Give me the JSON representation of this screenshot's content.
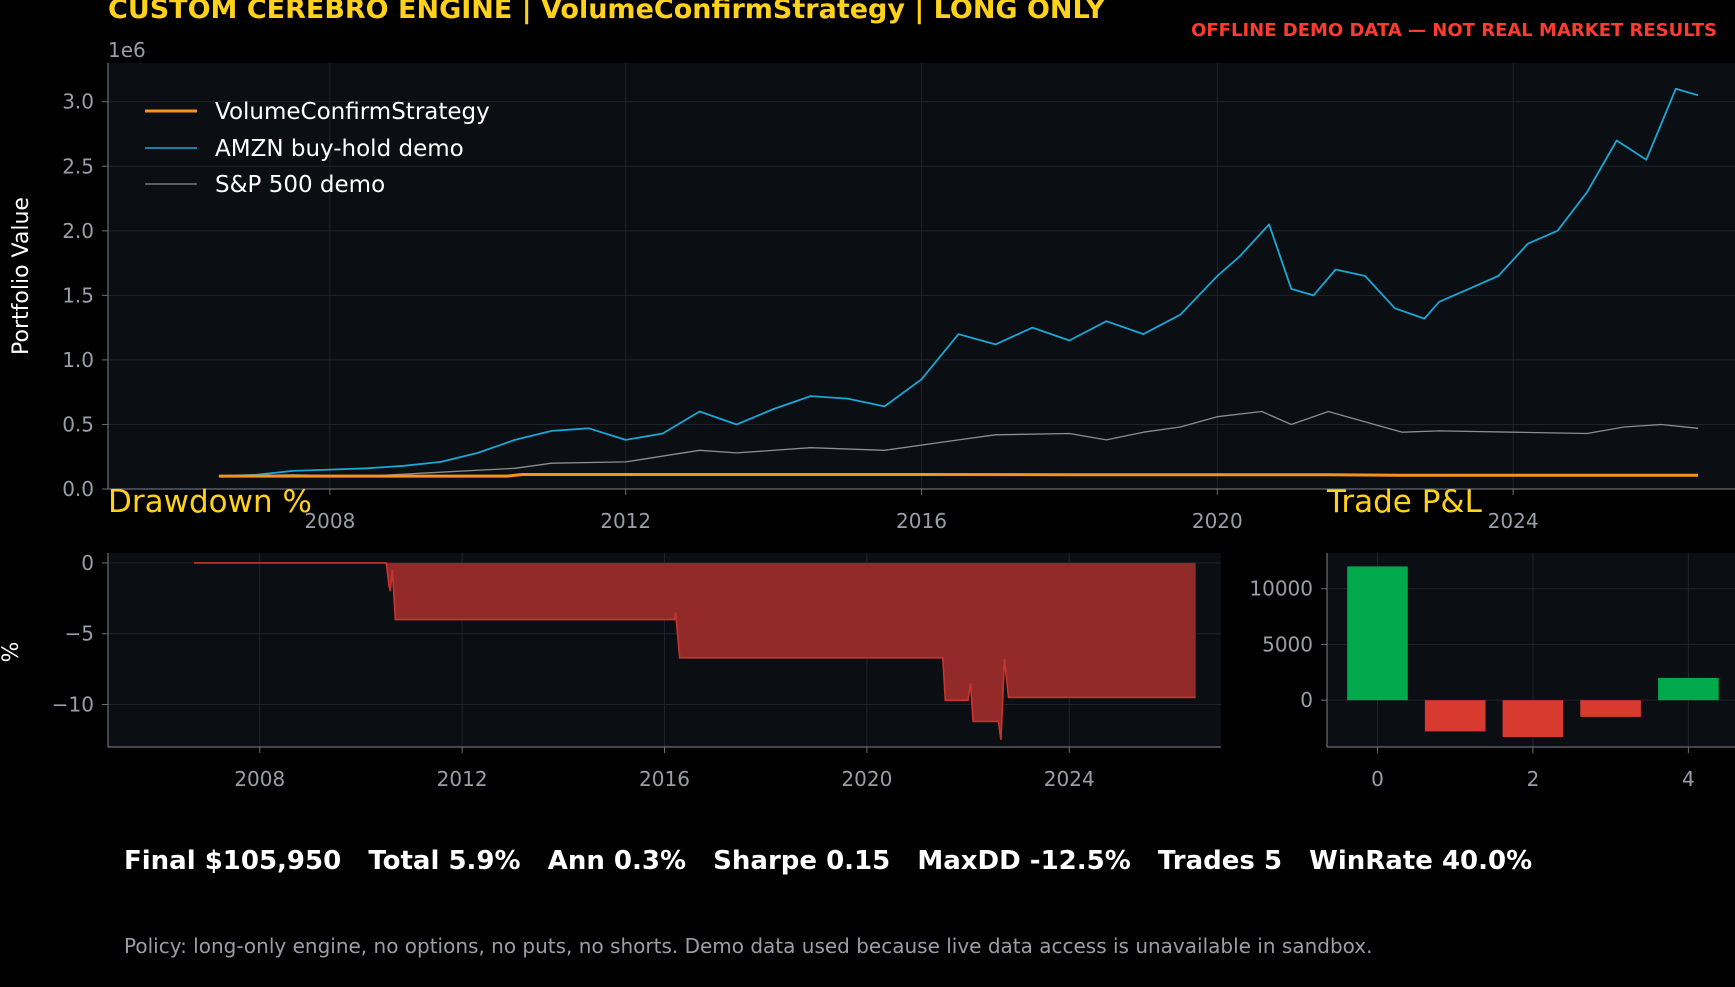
{
  "header": {
    "title": "CUSTOM CEREBRO ENGINE | VolumeConfirmStrategy | LONG ONLY",
    "warning": "OFFLINE DEMO DATA — NOT REAL MARKET RESULTS"
  },
  "stats_line": "Final $105,950   Total 5.9%   Ann 0.3%   Sharpe 0.15   MaxDD -12.5%   Trades 5   WinRate 40.0%",
  "policy_note": "Policy: long-only engine, no options, no puts, no shorts. Demo data used because live data access is unavailable in sandbox.",
  "colors": {
    "background": "#000000",
    "axes_bg": "#0b0e13",
    "grid": "#1f242c",
    "tick_text": "#9a9ea6",
    "strategy": "#f7931a",
    "amzn": "#19a7d6",
    "sp500": "#8a8d93",
    "drawdown_fill": "#922a2a",
    "drawdown_line": "#c8352f",
    "pnl_positive": "#00a94c",
    "pnl_negative": "#d93a30",
    "panel_title": "#ffd21a"
  },
  "chart_data": [
    {
      "type": "line",
      "title": "",
      "xlabel": "",
      "ylabel": "Portfolio Value",
      "y_offset_label": "1e6",
      "xlim": [
        2005.0,
        2027.0
      ],
      "ylim": [
        0,
        3.3
      ],
      "xticks": [
        2008,
        2012,
        2016,
        2020,
        2024
      ],
      "yticks": [
        0.0,
        0.5,
        1.0,
        1.5,
        2.0,
        2.5,
        3.0
      ],
      "ytick_labels": [
        "0.0",
        "0.5",
        "1.0",
        "1.5",
        "2.0",
        "2.5",
        "3.0"
      ],
      "grid": true,
      "legend": "upper-left",
      "series": [
        {
          "name": "VolumeConfirmStrategy",
          "color_key": "strategy",
          "x": [
            2006.5,
            2010.0,
            2010.4,
            2010.6,
            2013.0,
            2016.0,
            2018.0,
            2020.0,
            2021.5,
            2022.5,
            2024.0,
            2026.5
          ],
          "y": [
            0.1,
            0.1,
            0.1,
            0.112,
            0.112,
            0.112,
            0.111,
            0.111,
            0.11,
            0.106,
            0.107,
            0.106
          ]
        },
        {
          "name": "AMZN buy-hold demo",
          "color_key": "amzn",
          "x": [
            2006.5,
            2007.0,
            2007.5,
            2008.0,
            2008.5,
            2009.0,
            2009.5,
            2010.0,
            2010.5,
            2011.0,
            2011.5,
            2012.0,
            2012.5,
            2013.0,
            2013.5,
            2014.0,
            2014.5,
            2015.0,
            2015.5,
            2016.0,
            2016.5,
            2017.0,
            2017.5,
            2018.0,
            2018.5,
            2019.0,
            2019.5,
            2020.0,
            2020.3,
            2020.7,
            2021.0,
            2021.3,
            2021.6,
            2022.0,
            2022.4,
            2022.8,
            2023.0,
            2023.4,
            2023.8,
            2024.2,
            2024.6,
            2025.0,
            2025.4,
            2025.8,
            2026.2,
            2026.5
          ],
          "y": [
            0.1,
            0.11,
            0.14,
            0.15,
            0.16,
            0.18,
            0.21,
            0.28,
            0.38,
            0.45,
            0.47,
            0.38,
            0.43,
            0.6,
            0.5,
            0.62,
            0.72,
            0.7,
            0.64,
            0.85,
            1.2,
            1.12,
            1.25,
            1.15,
            1.3,
            1.2,
            1.35,
            1.65,
            1.8,
            2.05,
            1.55,
            1.5,
            1.7,
            1.65,
            1.4,
            1.32,
            1.45,
            1.55,
            1.65,
            1.9,
            2.0,
            2.3,
            2.7,
            2.55,
            3.1,
            3.05
          ]
        },
        {
          "name": "S&P 500 demo",
          "color_key": "sp500",
          "x": [
            2006.5,
            2007.5,
            2008.5,
            2009.5,
            2010.5,
            2011.0,
            2012.0,
            2013.0,
            2013.5,
            2014.5,
            2015.5,
            2016.5,
            2017.0,
            2018.0,
            2018.5,
            2019.0,
            2019.5,
            2020.0,
            2020.6,
            2021.0,
            2021.5,
            2022.0,
            2022.5,
            2023.0,
            2024.0,
            2025.0,
            2025.5,
            2026.0,
            2026.5
          ],
          "y": [
            0.1,
            0.11,
            0.1,
            0.13,
            0.16,
            0.2,
            0.21,
            0.3,
            0.28,
            0.32,
            0.3,
            0.38,
            0.42,
            0.43,
            0.38,
            0.44,
            0.48,
            0.56,
            0.6,
            0.5,
            0.6,
            0.52,
            0.44,
            0.45,
            0.44,
            0.43,
            0.48,
            0.5,
            0.47
          ]
        }
      ]
    },
    {
      "type": "area",
      "title": "Drawdown %",
      "xlabel": "",
      "ylabel": "%",
      "xlim": [
        2005.0,
        2027.0
      ],
      "ylim": [
        -13,
        0.7
      ],
      "xticks": [
        2008,
        2012,
        2016,
        2020,
        2024
      ],
      "yticks": [
        0,
        -5,
        -10
      ],
      "ytick_labels": [
        "0",
        "−5",
        "−10"
      ],
      "grid": true,
      "x": [
        2006.7,
        2010.5,
        2010.55,
        2010.58,
        2010.62,
        2010.68,
        2016.2,
        2016.22,
        2016.3,
        2021.5,
        2021.55,
        2022.0,
        2022.05,
        2022.1,
        2022.6,
        2022.65,
        2022.72,
        2022.8,
        2026.5
      ],
      "y": [
        0.0,
        0.0,
        -1.5,
        -2.0,
        -0.5,
        -4.0,
        -4.0,
        -3.5,
        -6.7,
        -6.7,
        -9.7,
        -9.7,
        -8.5,
        -11.2,
        -11.2,
        -12.5,
        -6.8,
        -9.5,
        -9.5
      ]
    },
    {
      "type": "bar",
      "title": "Trade P&L",
      "xlabel": "",
      "ylabel": "",
      "categories": [
        0,
        1,
        2,
        3,
        4
      ],
      "xticks": [
        0,
        2,
        4
      ],
      "values": [
        12000,
        -2800,
        -3300,
        -1500,
        2000
      ],
      "ylim": [
        -4200,
        13200
      ],
      "yticks": [
        0,
        5000,
        10000
      ],
      "ytick_labels": [
        "0",
        "5000",
        "10000"
      ],
      "grid": true
    }
  ]
}
